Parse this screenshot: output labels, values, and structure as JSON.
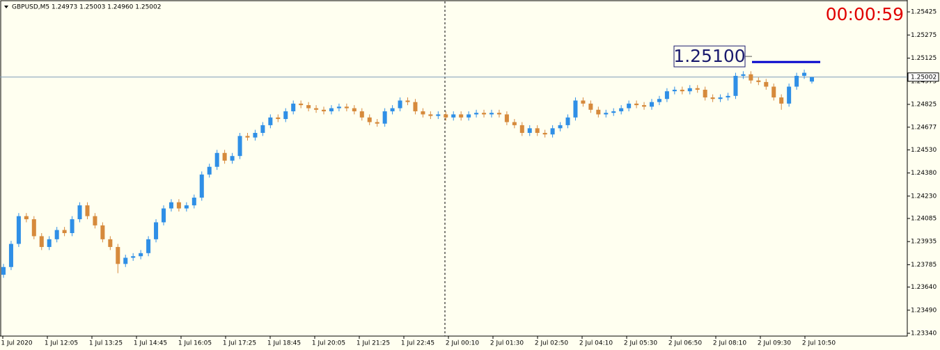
{
  "chart_data": {
    "type": "candlestick",
    "title": "GBPUSD,M5  1.24973 1.25003 1.24960 1.25002",
    "timer": "00:00:59",
    "ylim": [
      1.23322,
      1.25502
    ],
    "yticks": [
      1.25425,
      1.25275,
      1.25125,
      1.24975,
      1.24825,
      1.24677,
      {
        "value": 1.2453,
        "label": "1.24530"
      },
      {
        "value": 1.2438,
        "label": "1.24380"
      },
      {
        "value": 1.2423,
        "label": "1.24230"
      },
      1.24085,
      1.23935,
      1.23785,
      {
        "value": 1.2364,
        "label": "1.23640"
      },
      {
        "value": 1.2349,
        "label": "1.23490"
      },
      {
        "value": 1.2334,
        "label": "1.23340"
      }
    ],
    "time_labels": [
      "1 Jul 2020",
      "1 Jul 12:05",
      "1 Jul 13:25",
      "1 Jul 14:45",
      "1 Jul 16:05",
      "1 Jul 17:25",
      "1 Jul 18:45",
      "1 Jul 20:05",
      "1 Jul 21:25",
      "1 Jul 22:45",
      "2 Jul 00:10",
      "2 Jul 01:30",
      "2 Jul 02:50",
      "2 Jul 04:10",
      "2 Jul 05:30",
      "2 Jul 06:50",
      "2 Jul 08:10",
      "2 Jul 09:30",
      "2 Jul 10:50"
    ],
    "bid": 1.25002,
    "level": {
      "value": 1.251,
      "label": "1.25100"
    },
    "up_color": "#2f8fe6",
    "down_color": "#d68a3c",
    "open": [
      1.2372,
      1.2377,
      1.2392,
      1.241,
      1.2408,
      1.2397,
      1.239,
      1.2395,
      1.2401,
      1.2399,
      1.2408,
      1.2417,
      1.241,
      1.2404,
      1.2395,
      1.239,
      1.2379,
      1.2383,
      1.2384,
      1.2386,
      1.2395,
      1.2406,
      1.2415,
      1.2419,
      1.2415,
      1.2417,
      1.2422,
      1.2437,
      1.2442,
      1.2451,
      1.2446,
      1.2449,
      1.2462,
      1.2461,
      1.2464,
      1.2469,
      1.2474,
      1.2473,
      1.2478,
      1.2483,
      1.2482,
      1.248,
      1.2479,
      1.2478,
      1.248,
      1.2481,
      1.248,
      1.2478,
      1.2474,
      1.2471,
      1.247,
      1.2478,
      1.248,
      1.2485,
      1.2484,
      1.2478,
      1.2476,
      1.2475,
      1.2476,
      1.2474,
      1.2476,
      1.2474,
      1.2476,
      1.2477,
      1.2476,
      1.2477,
      1.2476,
      1.2471,
      1.2469,
      1.2464,
      1.2467,
      1.2464,
      1.2463,
      1.2467,
      1.2469,
      1.2474,
      1.2485,
      1.2483,
      1.2479,
      1.2476,
      1.2477,
      1.2478,
      1.248,
      1.2483,
      1.2482,
      1.2481,
      1.2484,
      1.2486,
      1.2491,
      1.2492,
      1.2491,
      1.2493,
      1.2492,
      1.2487,
      1.2486,
      1.2487,
      1.2488,
      1.2501,
      1.2502,
      1.2498,
      1.2497,
      1.2494,
      1.2487,
      1.2483,
      1.2494,
      1.2501,
      1.24973
    ],
    "high": [
      1.2379,
      1.2394,
      1.2412,
      1.2412,
      1.241,
      1.2399,
      1.2397,
      1.2403,
      1.2403,
      1.241,
      1.2419,
      1.2419,
      1.2412,
      1.2406,
      1.2397,
      1.2392,
      1.2385,
      1.2386,
      1.2388,
      1.2397,
      1.2408,
      1.2417,
      1.2421,
      1.2421,
      1.2419,
      1.2424,
      1.2439,
      1.2444,
      1.2453,
      1.2453,
      1.2451,
      1.2464,
      1.2464,
      1.2466,
      1.2471,
      1.2476,
      1.2476,
      1.248,
      1.2485,
      1.2485,
      1.2484,
      1.2482,
      1.2481,
      1.2482,
      1.2483,
      1.2483,
      1.2482,
      1.248,
      1.2476,
      1.2473,
      1.248,
      1.2482,
      1.2487,
      1.2487,
      1.2486,
      1.248,
      1.2478,
      1.2478,
      1.2478,
      1.2478,
      1.2478,
      1.2478,
      1.2479,
      1.2479,
      1.2479,
      1.2479,
      1.2478,
      1.2473,
      1.2471,
      1.2469,
      1.2469,
      1.2466,
      1.2469,
      1.2471,
      1.2476,
      1.2487,
      1.2487,
      1.2485,
      1.2481,
      1.2479,
      1.248,
      1.2482,
      1.2485,
      1.2485,
      1.2484,
      1.2486,
      1.2488,
      1.2493,
      1.2494,
      1.2494,
      1.2495,
      1.2495,
      1.2494,
      1.2489,
      1.2489,
      1.249,
      1.2503,
      1.2504,
      1.2504,
      1.25,
      1.2499,
      1.2496,
      1.2489,
      1.2496,
      1.2503,
      1.2505,
      1.25003
    ],
    "low": [
      1.237,
      1.2375,
      1.239,
      1.2406,
      1.2395,
      1.2388,
      1.2388,
      1.2393,
      1.2397,
      1.2397,
      1.2406,
      1.2408,
      1.2402,
      1.2393,
      1.2388,
      1.2373,
      1.2377,
      1.2381,
      1.2382,
      1.2384,
      1.2393,
      1.2404,
      1.2413,
      1.2413,
      1.2413,
      1.2415,
      1.242,
      1.2435,
      1.244,
      1.2444,
      1.2444,
      1.2447,
      1.2459,
      1.2459,
      1.2462,
      1.2467,
      1.2471,
      1.2471,
      1.2476,
      1.248,
      1.2478,
      1.2477,
      1.2476,
      1.2476,
      1.2478,
      1.2478,
      1.2476,
      1.2472,
      1.2469,
      1.2468,
      1.2468,
      1.2476,
      1.2478,
      1.2482,
      1.2476,
      1.2474,
      1.2473,
      1.2473,
      1.2472,
      1.2472,
      1.2472,
      1.2472,
      1.2474,
      1.2474,
      1.2474,
      1.2474,
      1.2469,
      1.2467,
      1.2462,
      1.2462,
      1.2462,
      1.2461,
      1.2461,
      1.2465,
      1.2467,
      1.2472,
      1.2481,
      1.2477,
      1.2474,
      1.2474,
      1.2475,
      1.2476,
      1.2478,
      1.248,
      1.2479,
      1.2479,
      1.2482,
      1.2484,
      1.2489,
      1.2489,
      1.2489,
      1.249,
      1.2485,
      1.2484,
      1.2484,
      1.2485,
      1.2486,
      1.2499,
      1.2496,
      1.2495,
      1.2492,
      1.2485,
      1.2479,
      1.2481,
      1.2492,
      1.2499,
      1.2496
    ],
    "close": [
      1.2377,
      1.2392,
      1.241,
      1.2408,
      1.2397,
      1.239,
      1.2395,
      1.2401,
      1.2399,
      1.2408,
      1.2417,
      1.241,
      1.2404,
      1.2395,
      1.239,
      1.2379,
      1.2383,
      1.2384,
      1.2386,
      1.2395,
      1.2406,
      1.2415,
      1.2419,
      1.2415,
      1.2417,
      1.2422,
      1.2437,
      1.2442,
      1.2451,
      1.2446,
      1.2449,
      1.2462,
      1.2461,
      1.2464,
      1.2469,
      1.2474,
      1.2473,
      1.2478,
      1.2483,
      1.2482,
      1.248,
      1.2479,
      1.2478,
      1.248,
      1.2481,
      1.248,
      1.2478,
      1.2474,
      1.2471,
      1.247,
      1.2478,
      1.248,
      1.2485,
      1.2484,
      1.2478,
      1.2476,
      1.2475,
      1.2476,
      1.2474,
      1.2476,
      1.2474,
      1.2476,
      1.2477,
      1.2476,
      1.2477,
      1.2476,
      1.2471,
      1.2469,
      1.2464,
      1.2467,
      1.2464,
      1.2463,
      1.2467,
      1.2469,
      1.2474,
      1.2485,
      1.2483,
      1.2479,
      1.2476,
      1.2477,
      1.2478,
      1.248,
      1.2483,
      1.2482,
      1.2481,
      1.2484,
      1.2486,
      1.2491,
      1.2492,
      1.2491,
      1.2493,
      1.2492,
      1.2487,
      1.2486,
      1.2487,
      1.2488,
      1.2501,
      1.2502,
      1.2498,
      1.2497,
      1.2494,
      1.2487,
      1.2483,
      1.2494,
      1.2501,
      1.2503,
      1.25002
    ]
  }
}
